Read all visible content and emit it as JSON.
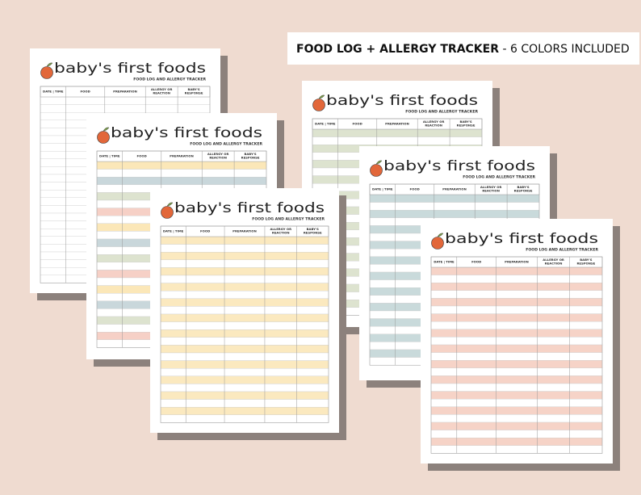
{
  "banner": {
    "bold": "FOOD LOG + ALLERGY TRACKER",
    "rest": "- 6 COLORS INCLUDED"
  },
  "pages": [
    {
      "title": "baby's first foods",
      "subtitle": "FOOD LOG AND ALLERGY TRACKER",
      "columns": [
        "DATE | TIME",
        "FOOD",
        "PREPARATION",
        [
          "ALLERGY OR",
          "REACTION"
        ],
        [
          "BABY'S",
          "RESPONSE"
        ]
      ]
    },
    {
      "title": "baby's first foods",
      "subtitle": "FOOD LOG AND ALLERGY TRACKER",
      "columns": [
        "DATE | TIME",
        "FOOD",
        "PREPARATION",
        [
          "ALLERGY OR",
          "REACTION"
        ],
        [
          "BABY'S",
          "RESPONSE"
        ]
      ]
    },
    {
      "title": "baby's first foods",
      "subtitle": "FOOD LOG AND ALLERGY TRACKER",
      "columns": [
        "DATE | TIME",
        "FOOD",
        "PREPARATION",
        [
          "ALLERGY OR",
          "REACTION"
        ],
        [
          "BABY'S",
          "RESPONSE"
        ]
      ]
    },
    {
      "title": "baby's first foods",
      "subtitle": "FOOD LOG AND ALLERGY TRACKER",
      "columns": [
        "DATE | TIME",
        "FOOD",
        "PREPARATION",
        [
          "ALLERGY OR",
          "REACTION"
        ],
        [
          "BABY'S",
          "RESPONSE"
        ]
      ]
    },
    {
      "title": "baby's first foods",
      "subtitle": "FOOD LOG AND ALLERGY TRACKER",
      "columns": [
        "DATE | TIME",
        "FOOD",
        "PREPARATION",
        [
          "ALLERGY OR",
          "REACTION"
        ],
        [
          "BABY'S",
          "RESPONSE"
        ]
      ]
    },
    {
      "title": "baby's first foods",
      "subtitle": "FOOD LOG AND ALLERGY TRACKER",
      "columns": [
        "DATE | TIME",
        "FOOD",
        "PREPARATION",
        [
          "ALLERGY OR",
          "REACTION"
        ],
        [
          "BABY'S",
          "RESPONSE"
        ]
      ]
    }
  ]
}
